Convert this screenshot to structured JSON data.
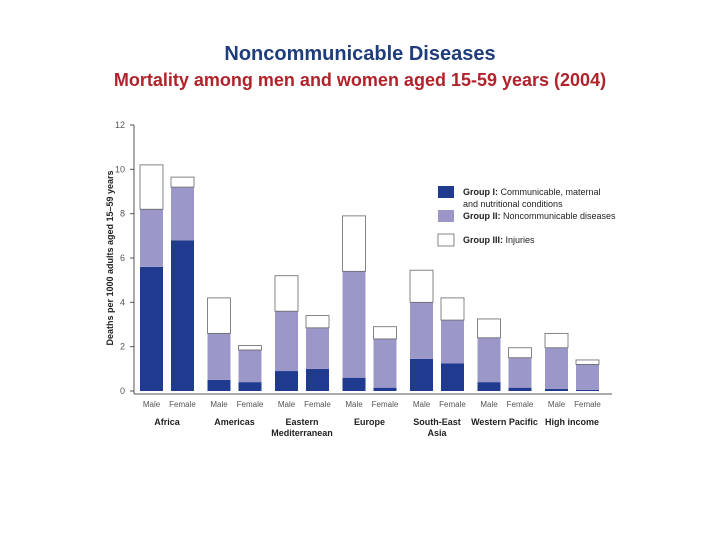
{
  "header": {
    "title": "Noncommunicable Diseases",
    "subtitle": "Mortality among men and women aged 15-59 years (2004)"
  },
  "chart_data": {
    "type": "bar",
    "stacked": true,
    "ylabel": "Deaths per 1000 adults aged 15–59 years",
    "ylim": [
      0,
      12
    ],
    "yticks": [
      0,
      2,
      4,
      6,
      8,
      10,
      12
    ],
    "grid": false,
    "legend_position": "top-right",
    "groups": [
      {
        "label": "Africa"
      },
      {
        "label": "Americas"
      },
      {
        "label": "Eastern Mediterranean"
      },
      {
        "label": "Europe"
      },
      {
        "label": "South-East Asia"
      },
      {
        "label": "Western Pacific"
      },
      {
        "label": "High income"
      }
    ],
    "bar_labels": [
      "Male",
      "Female",
      "Male",
      "Female",
      "Male",
      "Female",
      "Male",
      "Female",
      "Male",
      "Female",
      "Male",
      "Female",
      "Male",
      "Female"
    ],
    "series": [
      {
        "name": "Group I: Communicable, maternal and nutritional conditions",
        "legend_bold": "Group I:",
        "legend_text": "Communicable, maternal and nutritional conditions",
        "color": "#1f3a8f",
        "values": [
          5.6,
          6.8,
          0.5,
          0.4,
          0.9,
          1.0,
          0.6,
          0.15,
          1.45,
          1.25,
          0.4,
          0.15,
          0.1,
          0.05
        ]
      },
      {
        "name": "Group II: Noncommunicable diseases",
        "legend_bold": "Group II:",
        "legend_text": "Noncommunicable diseases",
        "color": "#9b98c9",
        "values": [
          2.6,
          2.4,
          2.1,
          1.45,
          2.7,
          1.85,
          4.8,
          2.2,
          2.55,
          1.95,
          2.0,
          1.35,
          1.85,
          1.15
        ]
      },
      {
        "name": "Group III: Injuries",
        "legend_bold": "Group III:",
        "legend_text": "Injuries",
        "color": "#ffffff",
        "values": [
          2.0,
          0.45,
          1.6,
          0.2,
          1.6,
          0.55,
          2.5,
          0.55,
          1.45,
          1.0,
          0.85,
          0.45,
          0.65,
          0.2
        ]
      }
    ]
  }
}
